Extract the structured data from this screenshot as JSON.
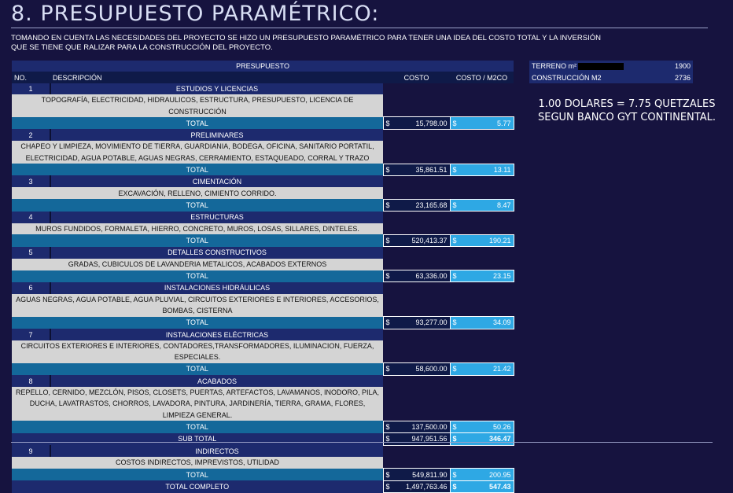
{
  "title": "8. PRESUPUESTO PARAMÉTRICO:",
  "intro": "TOMANDO EN CUENTA LAS NECESIDADES DEL PROYECTO SE HIZO UN PRESUPUESTO PARAMÉTRICO PARA TENER UNA IDEA DEL COSTO TOTAL Y LA INVERSIÓN QUE SE TIENE QUE RALIZAR PARA LA CONSTRUCCIÓN DEL PROYECTO.",
  "table": {
    "header": "PRESUPUESTO",
    "col_no": "NO.",
    "col_desc": "DESCRIPCIÓN",
    "col_cost": "COSTO",
    "col_m2": "COSTO / M2CO",
    "currency": "$",
    "total_label": "TOTAL",
    "sections": [
      {
        "no": "1",
        "name": "ESTUDIOS Y LICENCIAS",
        "desc": "TOPOGRAFÍA, ELECTRICIDAD, HIDRAULICOS, ESTRUCTURA, PRESUPUESTO, LICENCIA DE CONSTRUCCIÓN",
        "total": "15,798.00",
        "m2": "5.77"
      },
      {
        "no": "2",
        "name": "PRELIMINARES",
        "desc": "CHAPEO Y LIMPIEZA, MOVIMIENTO DE TIERRA, GUARDIANIA, BODEGA, OFICINA, SANITARIO PORTATIL, ELECTRICIDAD, AGUA POTABLE, AGUAS NEGRAS, CERRAMIENTO, ESTAQUEADO, CORRAL Y TRAZO",
        "total": "35,861.51",
        "m2": "13.11"
      },
      {
        "no": "3",
        "name": "CIMENTACIÓN",
        "desc": "EXCAVACIÓN, RELLENO, CIMIENTO CORRIDO.",
        "total": "23,165.68",
        "m2": "8.47"
      },
      {
        "no": "4",
        "name": "ESTRUCTURAS",
        "desc": "MUROS FUNDIDOS, FORMALETA, HIERRO, CONCRETO, MUROS, LOSAS, SILLARES, DINTELES.",
        "total": "520,413.37",
        "m2": "190.21"
      },
      {
        "no": "5",
        "name": "DETALLES CONSTRUCTIVOS",
        "desc": "GRADAS, CUBICULOS DE LAVANDERIA METALICOS, ACABADOS EXTERNOS",
        "total": "63,336.00",
        "m2": "23.15"
      },
      {
        "no": "6",
        "name": "INSTALACIONES HIDRÁULICAS",
        "desc": "AGUAS NEGRAS, AGUA POTABLE, AGUA PLUVIAL, CIRCUITOS EXTERIORES E INTERIORES, ACCESORIOS, BOMBAS, CISTERNA",
        "total": "93,277.00",
        "m2": "34.09"
      },
      {
        "no": "7",
        "name": "INSTALACIONES ELÉCTRICAS",
        "desc": "CIRCUITOS EXTERIORES E INTERIORES, CONTADORES,TRANSFORMADORES, ILUMINACION, FUERZA, ESPECIALES.",
        "total": "58,600.00",
        "m2": "21.42"
      },
      {
        "no": "8",
        "name": "ACABADOS",
        "desc": "REPELLO, CERNIDO, MEZCLÓN, PISOS, CLOSETS, PUERTAS, ARTEFACTOS, LAVAMANOS, INODORO, PILA, DUCHA, LAVATRASTOS, CHORROS, LAVADORA, PINTURA, JARDINERÍA, TIERRA, GRAMA, FLORES, LIMPIEZA GENERAL.",
        "total": "137,500.00",
        "m2": "50.26"
      }
    ],
    "subtotal": {
      "label": "SUB TOTAL",
      "total": "947,951.56",
      "m2": "346.47"
    },
    "indirect": {
      "no": "9",
      "name": "INDIRECTOS",
      "desc": "COSTOS INDIRECTOS, IMPREVISTOS, UTILIDAD",
      "total": "549,811.90",
      "m2": "200.95"
    },
    "grand_total": {
      "label": "TOTAL COMPLETO",
      "total": "1,497,763.46",
      "m2": "547.43"
    }
  },
  "side": {
    "terreno_label": "TERRENO m²",
    "terreno_value": "1900",
    "construccion_label": "CONSTRUCCIÓN M2",
    "construccion_value": "2736"
  },
  "exchange_line1": "1.00 DOLARES = 7.75 QUETZALES",
  "exchange_line2": "SEGUN BANCO GYT CONTINENTAL."
}
